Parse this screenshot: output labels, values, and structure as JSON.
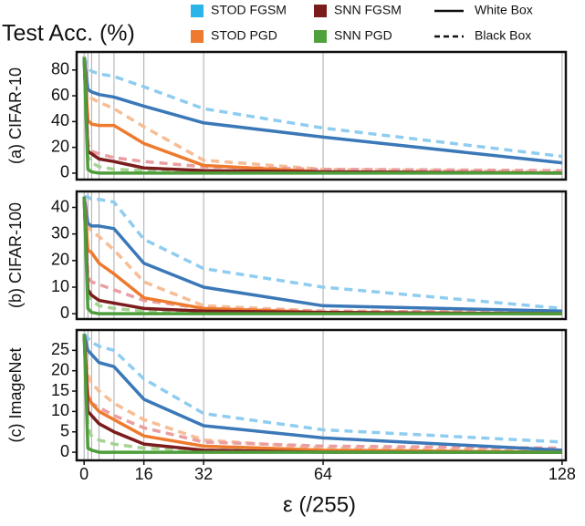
{
  "ylabel": "Test Acc. (%)",
  "xlabel": "ε (/255)",
  "legend": {
    "items": [
      {
        "name": "STOD FGSM",
        "color": "#29b5e8"
      },
      {
        "name": "SNN FGSM",
        "color": "#7a1c1c"
      },
      {
        "name": "STOD PGD",
        "color": "#ee7a30"
      },
      {
        "name": "SNN PGD",
        "color": "#4fa23b"
      }
    ],
    "styles": [
      {
        "name": "White Box",
        "dashed": false
      },
      {
        "name": "Black Box",
        "dashed": true
      }
    ]
  },
  "chart_data": [
    {
      "type": "line",
      "ylabel": "(a) CIFAR-10",
      "grid": true,
      "x": [
        0,
        1,
        2,
        4,
        8,
        16,
        32,
        64,
        128
      ],
      "xlim": [
        -2,
        129
      ],
      "ylim": [
        -5,
        94
      ],
      "yticks": [
        0,
        20,
        40,
        60,
        80
      ],
      "series": [
        {
          "color": "#8fcdf0",
          "dashed": true,
          "values": [
            90,
            82,
            79,
            77,
            75,
            67,
            50,
            35,
            13
          ]
        },
        {
          "color": "#f7bd95",
          "dashed": true,
          "values": [
            90,
            63,
            58,
            55,
            50,
            36,
            10,
            3,
            1
          ]
        },
        {
          "color": "#ea9ea2",
          "dashed": true,
          "values": [
            90,
            22,
            17,
            15,
            12,
            9,
            5,
            3,
            2
          ]
        },
        {
          "color": "#a5d394",
          "dashed": true,
          "values": [
            90,
            13,
            8,
            5,
            3,
            2,
            1,
            1,
            0
          ]
        },
        {
          "color": "#3b78b8",
          "dashed": false,
          "values": [
            90,
            65,
            63,
            61,
            59,
            52,
            39,
            28,
            8
          ]
        },
        {
          "color": "#ee7a2e",
          "dashed": false,
          "values": [
            90,
            41,
            38,
            37,
            37,
            23,
            6,
            1,
            0
          ]
        },
        {
          "color": "#7b1d1d",
          "dashed": false,
          "values": [
            90,
            17,
            15,
            11,
            9,
            4,
            2,
            1,
            0
          ]
        },
        {
          "color": "#4e9d3b",
          "dashed": false,
          "values": [
            90,
            3,
            1,
            0,
            0,
            0,
            0,
            0,
            0
          ]
        }
      ]
    },
    {
      "type": "line",
      "ylabel": "(b) CIFAR-100",
      "grid": true,
      "x": [
        0,
        1,
        2,
        4,
        8,
        16,
        32,
        64,
        128
      ],
      "xlim": [
        -2,
        129
      ],
      "ylim": [
        -2,
        46
      ],
      "yticks": [
        0,
        10,
        20,
        30,
        40
      ],
      "series": [
        {
          "color": "#8fcdf0",
          "dashed": true,
          "values": [
            44,
            44,
            43,
            43,
            42,
            28,
            17,
            10,
            2
          ]
        },
        {
          "color": "#f7bd95",
          "dashed": true,
          "values": [
            44,
            33,
            31,
            29,
            24,
            12,
            3,
            1,
            0.5
          ]
        },
        {
          "color": "#ea9ea2",
          "dashed": true,
          "values": [
            44,
            14,
            12,
            11,
            9,
            5,
            2,
            1,
            0.5
          ]
        },
        {
          "color": "#a5d394",
          "dashed": true,
          "values": [
            44,
            7,
            5,
            3,
            2,
            1,
            0.5,
            0.5,
            0
          ]
        },
        {
          "color": "#3b78b8",
          "dashed": false,
          "values": [
            44,
            34,
            33,
            33,
            32,
            19,
            10,
            3,
            1
          ]
        },
        {
          "color": "#ee7a2e",
          "dashed": false,
          "values": [
            44,
            24,
            23,
            19,
            15,
            6,
            2,
            0.5,
            0
          ]
        },
        {
          "color": "#7b1d1d",
          "dashed": false,
          "values": [
            44,
            9,
            7,
            5,
            4,
            2,
            1,
            0.5,
            0
          ]
        },
        {
          "color": "#4e9d3b",
          "dashed": false,
          "values": [
            44,
            2,
            0.5,
            0,
            0,
            0,
            0,
            0,
            0
          ]
        }
      ]
    },
    {
      "type": "line",
      "ylabel": "(c) ImageNet",
      "grid": true,
      "x": [
        0,
        1,
        2,
        4,
        8,
        16,
        32,
        64,
        128
      ],
      "xlim": [
        -2,
        129
      ],
      "xticks": [
        0,
        16,
        32,
        64,
        128
      ],
      "ylim": [
        -2,
        30
      ],
      "yticks": [
        0,
        5,
        10,
        15,
        20,
        25
      ],
      "series": [
        {
          "color": "#8fcdf0",
          "dashed": true,
          "values": [
            29,
            28,
            27,
            26,
            25,
            18,
            9.5,
            5.5,
            2.5
          ]
        },
        {
          "color": "#f7bd95",
          "dashed": true,
          "values": [
            29,
            19,
            17,
            15,
            12,
            8,
            3,
            1,
            0.5
          ]
        },
        {
          "color": "#ea9ea2",
          "dashed": true,
          "values": [
            29,
            14,
            12,
            11,
            9,
            6,
            2.5,
            1.5,
            1
          ]
        },
        {
          "color": "#a5d394",
          "dashed": true,
          "values": [
            29,
            6,
            4,
            3,
            2,
            1,
            0.5,
            0.5,
            0
          ]
        },
        {
          "color": "#3b78b8",
          "dashed": false,
          "values": [
            29,
            25,
            24,
            22,
            21,
            13,
            6.5,
            3.5,
            0.5
          ]
        },
        {
          "color": "#ee7a2e",
          "dashed": false,
          "values": [
            29,
            14,
            12,
            10,
            8,
            4,
            1.5,
            0.5,
            0
          ]
        },
        {
          "color": "#7b1d1d",
          "dashed": false,
          "values": [
            29,
            10,
            9,
            7,
            5,
            2,
            0.5,
            0,
            0
          ]
        },
        {
          "color": "#4e9d3b",
          "dashed": false,
          "values": [
            29,
            1,
            0.5,
            0,
            0,
            0,
            0,
            0,
            0
          ]
        }
      ]
    }
  ]
}
